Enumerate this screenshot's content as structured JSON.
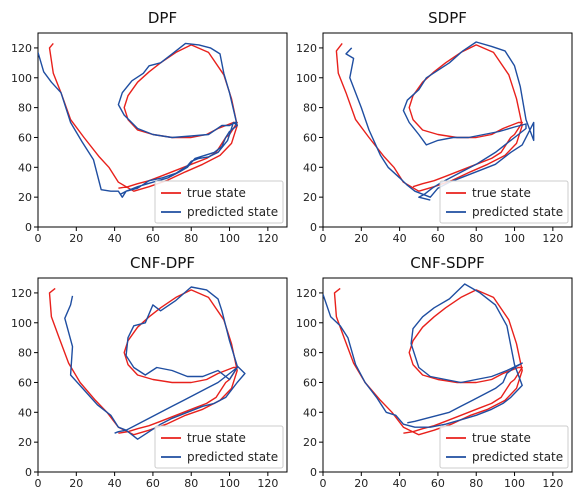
{
  "chart_data": [
    {
      "type": "line",
      "title": "DPF",
      "xlim": [
        0,
        130
      ],
      "ylim": [
        0,
        130
      ],
      "xticks": [
        0,
        20,
        40,
        60,
        80,
        100,
        120
      ],
      "yticks": [
        0,
        20,
        40,
        60,
        80,
        100,
        120
      ],
      "legend": "lower-right",
      "series": [
        {
          "name": "true state",
          "color": "#e8211c",
          "x": [
            8,
            6,
            8,
            12,
            17,
            24,
            32,
            37,
            42,
            50,
            58,
            67,
            77,
            86,
            95,
            101,
            104,
            101,
            97,
            89,
            80,
            72,
            64,
            58,
            52,
            47,
            45,
            47,
            52,
            60,
            70,
            80,
            88,
            94,
            98,
            102,
            104,
            102,
            100,
            98,
            96,
            93,
            88,
            82,
            76,
            70,
            64,
            58,
            52,
            47,
            42
          ],
          "y": [
            123,
            120,
            103,
            90,
            72,
            60,
            47,
            40,
            30,
            24,
            27,
            31,
            37,
            42,
            48,
            56,
            68,
            86,
            102,
            117,
            122,
            117,
            110,
            104,
            97,
            88,
            80,
            72,
            65,
            62,
            60,
            60,
            62,
            66,
            68,
            70,
            70,
            66,
            62,
            60,
            56,
            50,
            46,
            43,
            40,
            37,
            34,
            31,
            29,
            27,
            26
          ]
        },
        {
          "name": "predicted state",
          "color": "#1f4ea1",
          "x": [
            0,
            3,
            7,
            12,
            17,
            23,
            29,
            33,
            38,
            42,
            44,
            46,
            52,
            58,
            65,
            72,
            78,
            80,
            84,
            89,
            94,
            99,
            102,
            104,
            100,
            97,
            95,
            90,
            84,
            77,
            70,
            64,
            58,
            55,
            55,
            49,
            44,
            42,
            45,
            52,
            60,
            70,
            80,
            89,
            96,
            100,
            103,
            104,
            100,
            98,
            96,
            92,
            87,
            82,
            80,
            78,
            74,
            68,
            60,
            52,
            46,
            43
          ],
          "y": [
            117,
            104,
            97,
            90,
            70,
            57,
            45,
            25,
            24,
            24,
            20,
            24,
            26,
            31,
            33,
            36,
            41,
            44,
            46,
            47,
            50,
            58,
            70,
            68,
            90,
            103,
            116,
            120,
            122,
            123,
            116,
            110,
            108,
            103,
            103,
            98,
            90,
            82,
            75,
            66,
            62,
            60,
            61,
            62,
            68,
            68,
            70,
            68,
            64,
            60,
            54,
            50,
            48,
            46,
            43,
            40,
            37,
            33,
            30,
            27,
            24,
            22
          ]
        }
      ]
    },
    {
      "type": "line",
      "title": "SDPF",
      "xlim": [
        0,
        130
      ],
      "ylim": [
        0,
        130
      ],
      "xticks": [
        0,
        20,
        40,
        60,
        80,
        100,
        120
      ],
      "yticks": [
        0,
        20,
        40,
        60,
        80,
        100,
        120
      ],
      "legend": "lower-right",
      "series": [
        {
          "name": "true state",
          "color": "#e8211c",
          "x": [
            10,
            7,
            8,
            12,
            17,
            24,
            32,
            37,
            42,
            50,
            58,
            67,
            77,
            86,
            95,
            101,
            104,
            101,
            97,
            89,
            80,
            72,
            64,
            58,
            52,
            47,
            45,
            47,
            52,
            60,
            70,
            80,
            88,
            94,
            98,
            102,
            104,
            102,
            100,
            98,
            96,
            93,
            88,
            82,
            76,
            70,
            64,
            58,
            52,
            47
          ],
          "y": [
            123,
            118,
            103,
            90,
            72,
            60,
            47,
            40,
            30,
            24,
            27,
            31,
            37,
            42,
            48,
            56,
            68,
            86,
            102,
            117,
            122,
            117,
            110,
            104,
            97,
            88,
            80,
            72,
            65,
            62,
            60,
            60,
            62,
            66,
            68,
            70,
            70,
            66,
            62,
            60,
            56,
            50,
            46,
            43,
            40,
            37,
            34,
            31,
            29,
            27
          ]
        },
        {
          "name": "predicted state",
          "color": "#1f4ea1",
          "x": [
            15,
            12,
            16,
            14,
            20,
            24,
            30,
            34,
            40,
            44,
            48,
            52,
            56,
            60,
            66,
            74,
            82,
            90,
            98,
            104,
            110,
            110,
            106,
            103,
            100,
            95,
            88,
            80,
            73,
            66,
            60,
            54,
            50,
            44,
            42,
            45,
            50,
            54,
            60,
            68,
            76,
            84,
            92,
            100,
            106,
            106,
            102,
            98,
            94,
            90,
            85,
            80,
            74,
            68,
            62,
            57,
            53,
            50,
            56
          ],
          "y": [
            120,
            116,
            113,
            100,
            80,
            65,
            48,
            40,
            33,
            28,
            24,
            22,
            20,
            26,
            30,
            34,
            38,
            42,
            50,
            55,
            70,
            58,
            72,
            94,
            108,
            118,
            121,
            124,
            118,
            110,
            105,
            100,
            92,
            85,
            78,
            70,
            62,
            55,
            58,
            60,
            60,
            62,
            64,
            67,
            69,
            66,
            62,
            58,
            54,
            50,
            46,
            42,
            38,
            34,
            30,
            26,
            22,
            20,
            18
          ]
        }
      ]
    },
    {
      "type": "line",
      "title": "CNF-DPF",
      "xlim": [
        0,
        130
      ],
      "ylim": [
        0,
        130
      ],
      "xticks": [
        0,
        20,
        40,
        60,
        80,
        100,
        120
      ],
      "yticks": [
        0,
        20,
        40,
        60,
        80,
        100,
        120
      ],
      "legend": "lower-right",
      "series": [
        {
          "name": "true state",
          "color": "#e8211c",
          "x": [
            9,
            6,
            7,
            11,
            16,
            22,
            30,
            36,
            42,
            50,
            58,
            67,
            77,
            86,
            95,
            101,
            104,
            101,
            97,
            89,
            80,
            72,
            64,
            58,
            52,
            47,
            45,
            47,
            52,
            60,
            70,
            80,
            88,
            94,
            98,
            102,
            104,
            102,
            100,
            98,
            96,
            93,
            88,
            82,
            76,
            70,
            64,
            58,
            52,
            47,
            42
          ],
          "y": [
            123,
            120,
            104,
            90,
            73,
            60,
            48,
            40,
            30,
            25,
            28,
            32,
            38,
            42,
            48,
            56,
            68,
            86,
            102,
            117,
            122,
            117,
            110,
            104,
            97,
            88,
            80,
            72,
            65,
            62,
            60,
            60,
            62,
            66,
            68,
            70,
            70,
            66,
            62,
            60,
            56,
            50,
            46,
            43,
            40,
            37,
            34,
            31,
            29,
            27,
            26
          ]
        },
        {
          "name": "predicted state",
          "color": "#1f4ea1",
          "x": [
            18,
            17,
            14,
            18,
            17,
            24,
            31,
            38,
            42,
            46,
            52,
            58,
            64,
            70,
            78,
            86,
            92,
            98,
            104,
            108,
            104,
            100,
            96,
            94,
            88,
            80,
            72,
            64,
            60,
            56,
            50,
            47,
            46,
            50,
            56,
            62,
            70,
            78,
            86,
            94,
            100,
            104,
            98,
            94,
            88,
            82,
            76,
            70,
            64,
            58,
            52,
            46,
            42,
            40
          ],
          "y": [
            118,
            112,
            103,
            84,
            65,
            55,
            45,
            38,
            30,
            28,
            22,
            27,
            32,
            36,
            40,
            44,
            46,
            50,
            60,
            66,
            71,
            88,
            108,
            116,
            122,
            124,
            115,
            108,
            112,
            100,
            98,
            90,
            78,
            70,
            65,
            70,
            68,
            64,
            64,
            68,
            62,
            70,
            64,
            60,
            56,
            52,
            48,
            44,
            40,
            36,
            32,
            28,
            27,
            26
          ]
        }
      ]
    },
    {
      "type": "line",
      "title": "CNF-SDPF",
      "xlim": [
        0,
        130
      ],
      "ylim": [
        0,
        130
      ],
      "xticks": [
        0,
        20,
        40,
        60,
        80,
        100,
        120
      ],
      "yticks": [
        0,
        20,
        40,
        60,
        80,
        100,
        120
      ],
      "legend": "lower-right",
      "series": [
        {
          "name": "true state",
          "color": "#e8211c",
          "x": [
            9,
            6,
            7,
            11,
            16,
            22,
            30,
            36,
            42,
            50,
            58,
            67,
            77,
            86,
            95,
            101,
            104,
            101,
            97,
            89,
            80,
            72,
            64,
            58,
            52,
            47,
            45,
            47,
            52,
            60,
            70,
            80,
            88,
            94,
            98,
            102,
            104,
            102,
            100,
            98,
            96,
            93,
            88,
            82,
            76,
            70,
            64,
            58,
            52,
            47,
            42
          ],
          "y": [
            123,
            120,
            104,
            90,
            73,
            60,
            48,
            40,
            30,
            25,
            28,
            32,
            38,
            42,
            48,
            56,
            68,
            86,
            102,
            117,
            122,
            117,
            110,
            104,
            97,
            88,
            80,
            72,
            65,
            62,
            60,
            60,
            62,
            66,
            68,
            70,
            70,
            66,
            62,
            60,
            56,
            50,
            46,
            43,
            40,
            37,
            34,
            31,
            29,
            27,
            26
          ]
        },
        {
          "name": "predicted state",
          "color": "#1f4ea1",
          "x": [
            0,
            4,
            9,
            13,
            17,
            22,
            28,
            33,
            38,
            42,
            48,
            56,
            64,
            72,
            80,
            88,
            94,
            98,
            104,
            100,
            96,
            90,
            82,
            74,
            66,
            58,
            52,
            47,
            46,
            50,
            56,
            64,
            72,
            80,
            88,
            96,
            104,
            100,
            96,
            94,
            90,
            84,
            78,
            72,
            66,
            60,
            54,
            48,
            44
          ],
          "y": [
            119,
            104,
            98,
            90,
            72,
            60,
            50,
            40,
            38,
            32,
            30,
            30,
            32,
            35,
            38,
            42,
            46,
            50,
            58,
            72,
            98,
            112,
            120,
            126,
            116,
            110,
            104,
            96,
            86,
            70,
            64,
            62,
            60,
            62,
            64,
            68,
            73,
            70,
            66,
            60,
            56,
            52,
            48,
            44,
            40,
            38,
            36,
            34,
            33
          ]
        }
      ]
    }
  ]
}
